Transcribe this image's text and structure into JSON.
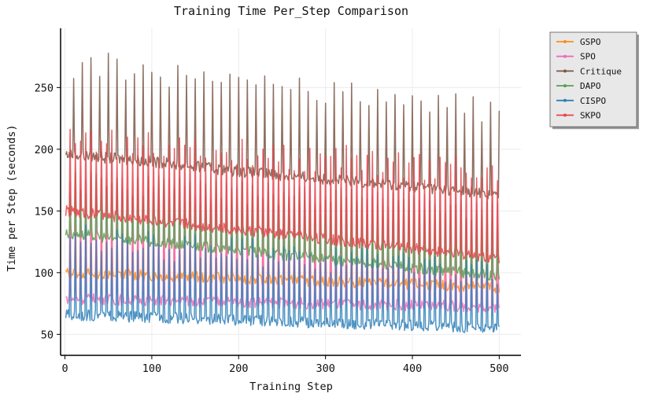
{
  "chart_data": {
    "type": "line",
    "title": "Training Time Per_Step Comparison",
    "xlabel": "Training Step",
    "ylabel": "Time per Step (seconds)",
    "xlim": [
      -5,
      525
    ],
    "ylim": [
      33,
      298
    ],
    "xticks": [
      0,
      100,
      200,
      300,
      400,
      500
    ],
    "yticks": [
      50,
      100,
      150,
      200,
      250
    ],
    "grid": true,
    "legend_position": "outside-top-right",
    "series": [
      {
        "name": "GSPO",
        "color": "#ff8c1a",
        "base": [
          [
            0,
            100
          ],
          [
            500,
            88
          ]
        ],
        "spike_top": [
          [
            0,
            148
          ],
          [
            500,
            118
          ]
        ],
        "spike_period": 6,
        "points": [
          [
            0,
            100
          ],
          [
            100,
            97
          ],
          [
            200,
            95
          ],
          [
            300,
            93
          ],
          [
            400,
            91
          ],
          [
            500,
            88
          ]
        ]
      },
      {
        "name": "SPO",
        "color": "#f26ab8",
        "base": [
          [
            0,
            79
          ],
          [
            500,
            72
          ]
        ],
        "spike_top": [
          [
            0,
            172
          ],
          [
            500,
            148
          ]
        ],
        "spike_period": 6,
        "points": [
          [
            0,
            79
          ],
          [
            100,
            76
          ],
          [
            200,
            75
          ],
          [
            300,
            74
          ],
          [
            400,
            73
          ],
          [
            500,
            72
          ]
        ]
      },
      {
        "name": "Critique",
        "color": "#7b5747",
        "base": [
          [
            0,
            196
          ],
          [
            100,
            190
          ],
          [
            200,
            182
          ],
          [
            300,
            176
          ],
          [
            400,
            170
          ],
          [
            500,
            163
          ]
        ],
        "spike_top": [
          [
            0,
            270
          ],
          [
            500,
            232
          ]
        ],
        "spike_period": 10,
        "points": [
          [
            0,
            196
          ],
          [
            100,
            190
          ],
          [
            200,
            182
          ],
          [
            300,
            176
          ],
          [
            400,
            170
          ],
          [
            500,
            163
          ]
        ]
      },
      {
        "name": "DAPO",
        "color": "#5a9e52",
        "base": [
          [
            0,
            132
          ],
          [
            500,
            97
          ]
        ],
        "spike_top": [
          [
            0,
            172
          ],
          [
            500,
            148
          ]
        ],
        "spike_period": 6,
        "points": [
          [
            0,
            132
          ],
          [
            100,
            122
          ],
          [
            200,
            114
          ],
          [
            300,
            108
          ],
          [
            400,
            102
          ],
          [
            500,
            97
          ]
        ]
      },
      {
        "name": "CISPO",
        "color": "#2f80b8",
        "base": [
          [
            0,
            66
          ],
          [
            500,
            55
          ]
        ],
        "spike_top": [
          [
            0,
            128
          ],
          [
            500,
            100
          ]
        ],
        "spike_period": 6,
        "points": [
          [
            0,
            66
          ],
          [
            100,
            63
          ],
          [
            200,
            60
          ],
          [
            300,
            58
          ],
          [
            400,
            56
          ],
          [
            500,
            55
          ]
        ]
      },
      {
        "name": "SKPO",
        "color": "#e8424a",
        "base": [
          [
            0,
            150
          ],
          [
            500,
            112
          ]
        ],
        "spike_top": [
          [
            0,
            208
          ],
          [
            500,
            182
          ]
        ],
        "spike_period": 6,
        "points": [
          [
            0,
            150
          ],
          [
            100,
            135
          ],
          [
            200,
            124
          ],
          [
            300,
            118
          ],
          [
            400,
            114
          ],
          [
            500,
            112
          ]
        ]
      }
    ]
  }
}
